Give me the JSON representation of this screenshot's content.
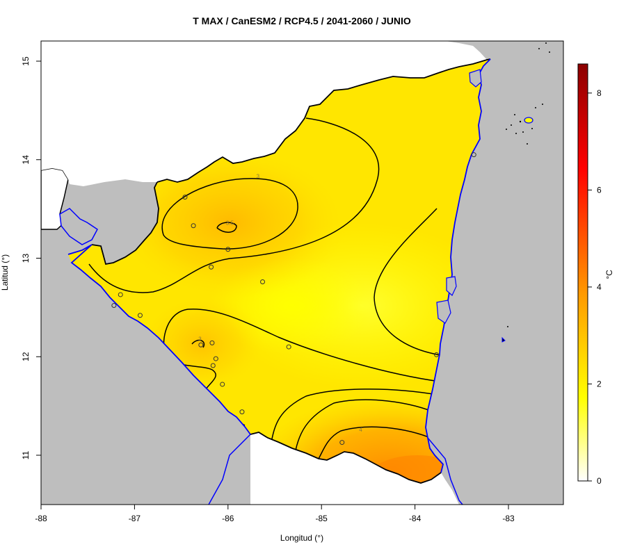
{
  "title": "T MAX / CanESM2 / RCP4.5 / 2041-2060 / JUNIO",
  "x_axis": {
    "label": "Longitud (°)",
    "ticks": [
      {
        "value": -88,
        "label": "-88"
      },
      {
        "value": -87,
        "label": "-87"
      },
      {
        "value": -86,
        "label": "-86"
      },
      {
        "value": -85,
        "label": "-85"
      },
      {
        "value": -84,
        "label": "-84"
      },
      {
        "value": -83,
        "label": "-83"
      }
    ]
  },
  "y_axis": {
    "label": "Latitud (°)",
    "ticks": [
      {
        "value": 11,
        "label": "11"
      },
      {
        "value": 12,
        "label": "12"
      },
      {
        "value": 13,
        "label": "13"
      },
      {
        "value": 14,
        "label": "14"
      },
      {
        "value": 15,
        "label": "15"
      }
    ]
  },
  "colorbar": {
    "unit": "°C",
    "range": [
      0,
      8.6
    ],
    "ticks": [
      {
        "value": 0,
        "label": "0"
      },
      {
        "value": 2,
        "label": "2"
      },
      {
        "value": 4,
        "label": "4"
      },
      {
        "value": 6,
        "label": "6"
      },
      {
        "value": 8,
        "label": "8"
      }
    ],
    "colors": [
      "#ffffff",
      "#ffff00",
      "#ff9900",
      "#ff0000",
      "#8b0000"
    ]
  },
  "contour_labels": [
    {
      "text": "3",
      "lon": -85.68,
      "lat": 13.81
    },
    {
      "text": "3.5",
      "lon": -85.98,
      "lat": 13.34
    },
    {
      "text": "3",
      "lon": -86.3,
      "lat": 12.16
    },
    {
      "text": "4",
      "lon": -84.58,
      "lat": 11.24
    }
  ],
  "stations": [
    {
      "lon": -86.46,
      "lat": 13.62
    },
    {
      "lon": -86.37,
      "lat": 13.33
    },
    {
      "lon": -86.0,
      "lat": 13.09
    },
    {
      "lon": -86.18,
      "lat": 12.91
    },
    {
      "lon": -85.63,
      "lat": 12.76
    },
    {
      "lon": -87.15,
      "lat": 12.63
    },
    {
      "lon": -87.22,
      "lat": 12.52
    },
    {
      "lon": -86.94,
      "lat": 12.42
    },
    {
      "lon": -86.29,
      "lat": 12.12
    },
    {
      "lon": -86.17,
      "lat": 12.14
    },
    {
      "lon": -86.13,
      "lat": 11.98
    },
    {
      "lon": -86.16,
      "lat": 11.91
    },
    {
      "lon": -86.06,
      "lat": 11.72
    },
    {
      "lon": -85.85,
      "lat": 11.44
    },
    {
      "lon": -85.35,
      "lat": 12.1
    },
    {
      "lon": -84.78,
      "lat": 11.13
    },
    {
      "lon": -83.77,
      "lat": 12.02
    },
    {
      "lon": -83.37,
      "lat": 14.05
    }
  ]
}
